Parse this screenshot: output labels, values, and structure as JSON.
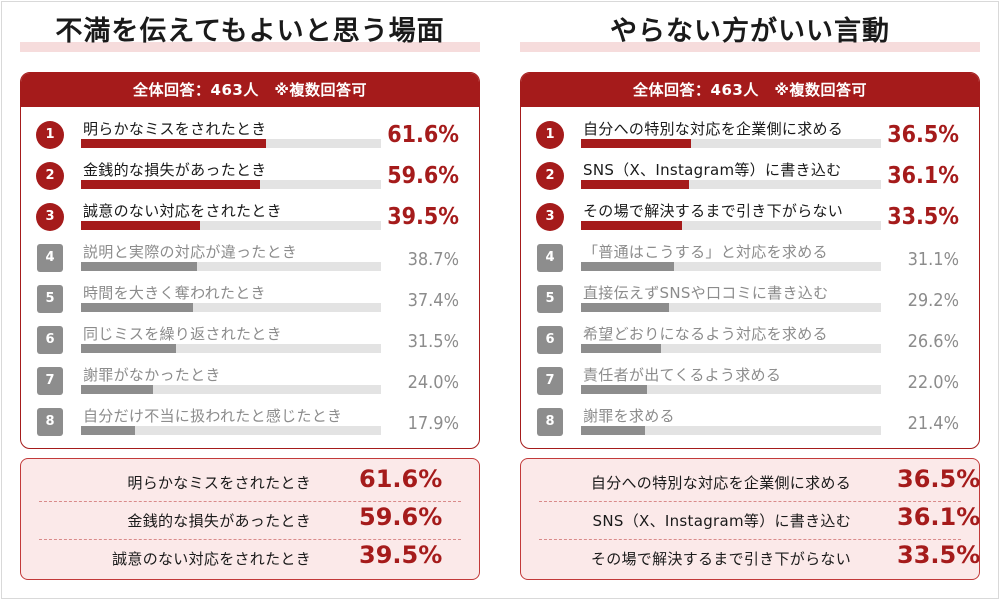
{
  "panels": [
    {
      "title": "不満を伝えてもよいと思う場面",
      "header": "全体回答：463人　※複数回答可",
      "rows": [
        {
          "rank": "1",
          "label": "明らかなミスをされたとき",
          "value": 61.6,
          "pct": "61.6%"
        },
        {
          "rank": "2",
          "label": "金銭的な損失があったとき",
          "value": 59.6,
          "pct": "59.6%"
        },
        {
          "rank": "3",
          "label": "誠意のない対応をされたとき",
          "value": 39.5,
          "pct": "39.5%"
        },
        {
          "rank": "4",
          "label": "説明と実際の対応が違ったとき",
          "value": 38.7,
          "pct": "38.7%"
        },
        {
          "rank": "5",
          "label": "時間を大きく奪われたとき",
          "value": 37.4,
          "pct": "37.4%"
        },
        {
          "rank": "6",
          "label": "同じミスを繰り返されたとき",
          "value": 31.5,
          "pct": "31.5%"
        },
        {
          "rank": "7",
          "label": "謝罪がなかったとき",
          "value": 24.0,
          "pct": "24.0%"
        },
        {
          "rank": "8",
          "label": "自分だけ不当に扱われたと感じたとき",
          "value": 17.9,
          "pct": "17.9%"
        }
      ],
      "summary": [
        {
          "label": "明らかなミスをされたとき",
          "pct": "61.6%"
        },
        {
          "label": "金銭的な損失があったとき",
          "pct": "59.6%"
        },
        {
          "label": "誠意のない対応をされたとき",
          "pct": "39.5%"
        }
      ]
    },
    {
      "title": "やらない方がいい言動",
      "header": "全体回答：463人　※複数回答可",
      "rows": [
        {
          "rank": "1",
          "label": "自分への特別な対応を企業側に求める",
          "value": 36.5,
          "pct": "36.5%"
        },
        {
          "rank": "2",
          "label": "SNS（X、Instagram等）に書き込む",
          "value": 36.1,
          "pct": "36.1%"
        },
        {
          "rank": "3",
          "label": "その場で解決するまで引き下がらない",
          "value": 33.5,
          "pct": "33.5%"
        },
        {
          "rank": "4",
          "label": "「普通はこうする」と対応を求める",
          "value": 31.1,
          "pct": "31.1%"
        },
        {
          "rank": "5",
          "label": "直接伝えずSNSや口コミに書き込む",
          "value": 29.2,
          "pct": "29.2%"
        },
        {
          "rank": "6",
          "label": "希望どおりになるよう対応を求める",
          "value": 26.6,
          "pct": "26.6%"
        },
        {
          "rank": "7",
          "label": "責任者が出てくるよう求める",
          "value": 22.0,
          "pct": "22.0%"
        },
        {
          "rank": "8",
          "label": "謝罪を求める",
          "value": 21.4,
          "pct": "21.4%"
        }
      ],
      "summary": [
        {
          "label": "自分への特別な対応を企業側に求める",
          "pct": "36.5%"
        },
        {
          "label": "SNS（X、Instagram等）に書き込む",
          "pct": "36.1%"
        },
        {
          "label": "その場で解決するまで引き下がらない",
          "pct": "33.5%"
        }
      ]
    }
  ],
  "colors": {
    "accent": "#a51b1b",
    "muted": "#8d8d8d",
    "track": "#e3e3e3",
    "summary_bg": "#fbe9e9"
  },
  "chart_data": [
    {
      "type": "bar",
      "title": "不満を伝えてもよいと思う場面",
      "subtitle": "全体回答：463人　※複数回答可",
      "categories": [
        "明らかなミスをされたとき",
        "金銭的な損失があったとき",
        "誠意のない対応をされたとき",
        "説明と実際の対応が違ったとき",
        "時間を大きく奪われたとき",
        "同じミスを繰り返されたとき",
        "謝罪がなかったとき",
        "自分だけ不当に扱われたと感じたとき"
      ],
      "values": [
        61.6,
        59.6,
        39.5,
        38.7,
        37.4,
        31.5,
        24.0,
        17.9
      ],
      "unit": "%"
    },
    {
      "type": "bar",
      "title": "やらない方がいい言動",
      "subtitle": "全体回答：463人　※複数回答可",
      "categories": [
        "自分への特別な対応を企業側に求める",
        "SNS（X、Instagram等）に書き込む",
        "その場で解決するまで引き下がらない",
        "「普通はこうする」と対応を求める",
        "直接伝えずSNSや口コミに書き込む",
        "希望どおりになるよう対応を求める",
        "責任者が出てくるよう求める",
        "謝罪を求める"
      ],
      "values": [
        36.5,
        36.1,
        33.5,
        31.1,
        29.2,
        26.6,
        22.0,
        21.4
      ],
      "unit": "%"
    }
  ]
}
